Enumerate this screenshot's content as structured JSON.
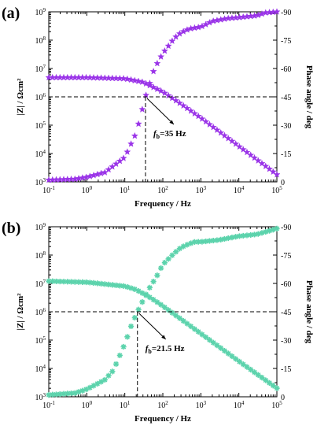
{
  "chart_data": [
    {
      "type": "scatter",
      "panel_label": "(a)",
      "xlabel": "Frequency / Hz",
      "ylabel_left": "|Z| / Ωcm²",
      "ylabel_right": "Phase angle / deg",
      "xscale": "log",
      "yscale_left": "log",
      "xlim": [
        0.1,
        100000
      ],
      "ylim_left": [
        1000,
        1000000000
      ],
      "ylim_right": [
        0,
        -90
      ],
      "x_ticks": [
        "10^-1",
        "10^0",
        "10^1",
        "10^2",
        "10^3",
        "10^4",
        "10^5"
      ],
      "y_left_ticks": [
        "10^3",
        "10^4",
        "10^5",
        "10^6",
        "10^7",
        "10^8",
        "10^9"
      ],
      "y_right_ticks": [
        "0",
        "-15",
        "-30",
        "-45",
        "-60",
        "-75",
        "-90"
      ],
      "marker": "star",
      "color": "#9a34e8",
      "annotation": {
        "prefix": "f",
        "sub": "b",
        "value": "=35 Hz",
        "x": 35,
        "phase": -45
      },
      "series": [
        {
          "quantity": "impedance",
          "x": [
            0.1,
            1,
            10,
            30,
            100,
            300,
            1000,
            10000,
            100000
          ],
          "values": [
            4800000,
            4800000,
            4400000,
            3300000,
            1500000,
            560000,
            180000,
            18000,
            1800
          ]
        },
        {
          "quantity": "phase",
          "x": [
            0.1,
            0.5,
            1,
            3,
            10,
            20,
            35,
            60,
            100,
            200,
            300,
            500,
            700,
            1000,
            2000,
            5000,
            10000,
            30000,
            50000,
            100000
          ],
          "values": [
            -1,
            -1.5,
            -2.5,
            -5,
            -13,
            -26,
            -45,
            -60,
            -68,
            -76,
            -79,
            -81,
            -81.5,
            -82,
            -85,
            -86.5,
            -87,
            -88,
            -89.5,
            -90
          ]
        }
      ]
    },
    {
      "type": "scatter",
      "panel_label": "(b)",
      "xlabel": "Frequency / Hz",
      "ylabel_left": "|Z| / Ωcm²",
      "ylabel_right": "Phase angle / deg",
      "xscale": "log",
      "yscale_left": "log",
      "xlim": [
        0.1,
        100000
      ],
      "ylim_left": [
        1000,
        1000000000
      ],
      "ylim_right": [
        0,
        -90
      ],
      "x_ticks": [
        "10^-1",
        "10^0",
        "10^1",
        "10^2",
        "10^3",
        "10^4",
        "10^5"
      ],
      "y_left_ticks": [
        "10^3",
        "10^4",
        "10^5",
        "10^6",
        "10^7",
        "10^8",
        "10^9"
      ],
      "y_right_ticks": [
        "0",
        "-15",
        "-30",
        "-45",
        "-60",
        "-75",
        "-90"
      ],
      "marker": "asterisk",
      "color": "#5cd3ac",
      "annotation": {
        "prefix": "f",
        "sub": "b",
        "value": "=21.5 Hz",
        "x": 21.5,
        "phase": -45
      },
      "series": [
        {
          "quantity": "impedance",
          "x": [
            0.1,
            1,
            10,
            20,
            50,
            100,
            1000,
            10000,
            100000
          ],
          "values": [
            12000000,
            11000000,
            8000000,
            6000000,
            3000000,
            1600000,
            170000,
            18000,
            2000
          ]
        },
        {
          "quantity": "phase",
          "x": [
            0.1,
            0.5,
            1,
            3,
            5,
            10,
            15,
            21.5,
            40,
            70,
            100,
            200,
            300,
            500,
            700,
            1000,
            3000,
            10000,
            30000,
            100000
          ],
          "values": [
            -1,
            -2,
            -4,
            -9,
            -14,
            -28,
            -38,
            -45,
            -56,
            -64,
            -70,
            -76,
            -79,
            -81,
            -82,
            -82,
            -83,
            -85,
            -86,
            -89
          ]
        }
      ]
    }
  ]
}
